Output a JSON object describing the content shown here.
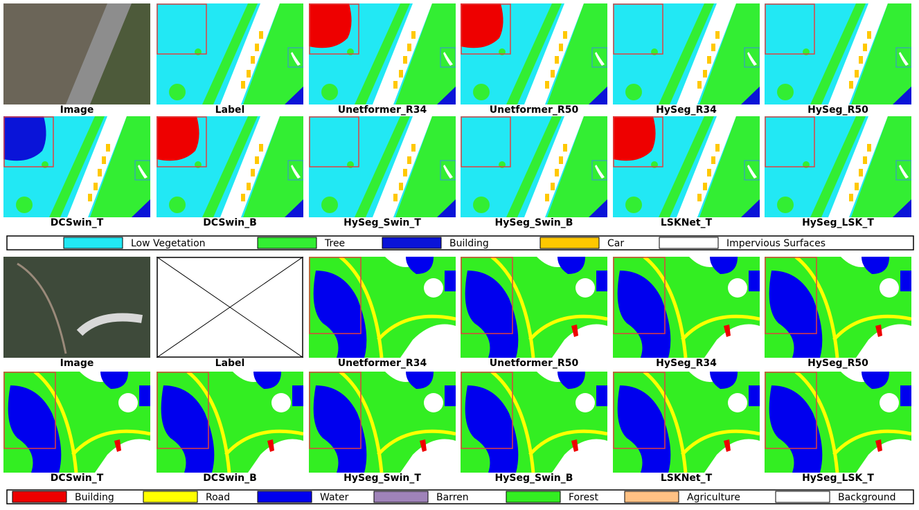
{
  "panels": [
    {
      "captions": [
        "Image",
        "Label",
        "Unetformer_R34",
        "Unetformer_R50",
        "HySeg_R34",
        "HySeg_R50",
        "DCSwin_T",
        "DCSwin_B",
        "HySeg_Swin_T",
        "HySeg_Swin_B",
        "LSKNet_T",
        "HySeg_LSK_T"
      ],
      "legend": [
        {
          "name": "Low Vegetation",
          "color": "#22e8f4"
        },
        {
          "name": "Tree",
          "color": "#33ee33"
        },
        {
          "name": "Building",
          "color": "#0a14d8"
        },
        {
          "name": "Car",
          "color": "#ffc800"
        },
        {
          "name": "Impervious Surfaces",
          "color": "#ffffff"
        }
      ]
    },
    {
      "captions": [
        "Image",
        "Label",
        "Unetformer_R34",
        "Unetformer_R50",
        "HySeg_R34",
        "HySeg_R50",
        "DCSwin_T",
        "DCSwin_B",
        "HySeg_Swin_T",
        "HySeg_Swin_B",
        "LSKNet_T",
        "HySeg_LSK_T"
      ],
      "legend": [
        {
          "name": "Building",
          "color": "#ee0000"
        },
        {
          "name": "Road",
          "color": "#ffff00"
        },
        {
          "name": "Water",
          "color": "#0000ee"
        },
        {
          "name": "Barren",
          "color": "#9f83b9"
        },
        {
          "name": "Forest",
          "color": "#33ee22"
        },
        {
          "name": "Agriculture",
          "color": "#ffc184"
        },
        {
          "name": "Background",
          "color": "#ffffff"
        }
      ]
    }
  ]
}
